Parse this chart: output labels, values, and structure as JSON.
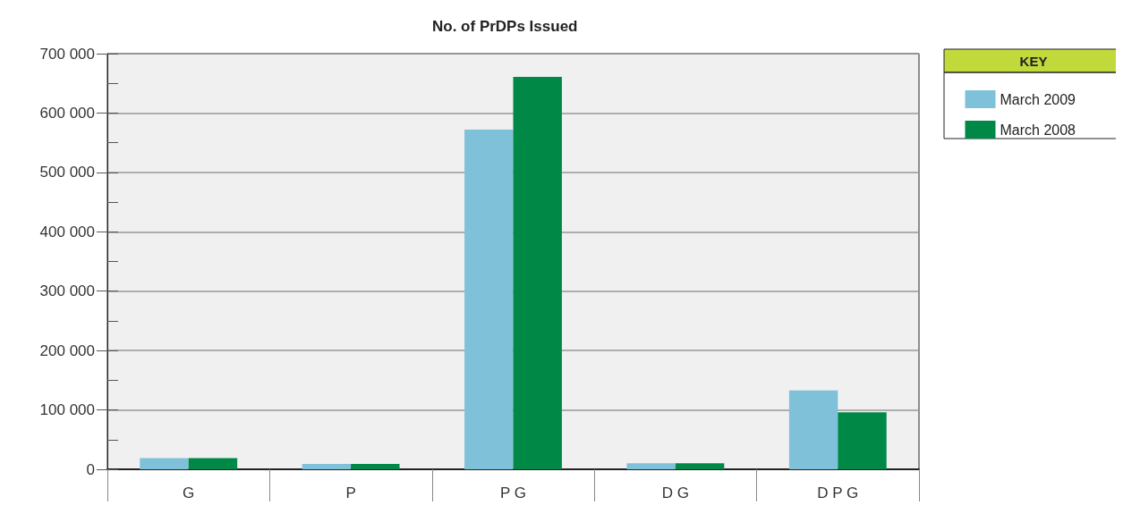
{
  "chart_data": {
    "type": "bar",
    "title": "No. of PrDPs Issued",
    "legend_title": "KEY",
    "categories": [
      "G",
      "P",
      "P G",
      "D G",
      "D P G"
    ],
    "series": [
      {
        "name": "March 2009",
        "color": "#7fc1d9",
        "values": [
          19000,
          9000,
          572000,
          10000,
          133000
        ]
      },
      {
        "name": "March 2008",
        "color": "#008847",
        "values": [
          19000,
          9000,
          661000,
          10000,
          96000
        ]
      }
    ],
    "ylim": [
      0,
      700000
    ],
    "yticks": [
      {
        "value": 0,
        "label": "0"
      },
      {
        "value": 50000,
        "label": null
      },
      {
        "value": 100000,
        "label": "100 000"
      },
      {
        "value": 150000,
        "label": null
      },
      {
        "value": 200000,
        "label": "200 000"
      },
      {
        "value": 250000,
        "label": null
      },
      {
        "value": 300000,
        "label": "300 000"
      },
      {
        "value": 350000,
        "label": null
      },
      {
        "value": 400000,
        "label": "400 000"
      },
      {
        "value": 450000,
        "label": null
      },
      {
        "value": 500000,
        "label": "500 000"
      },
      {
        "value": 550000,
        "label": null
      },
      {
        "value": 600000,
        "label": "600 000"
      },
      {
        "value": 650000,
        "label": null
      },
      {
        "value": 700000,
        "label": "700 000"
      }
    ],
    "grid": "y",
    "legend": "top right"
  }
}
